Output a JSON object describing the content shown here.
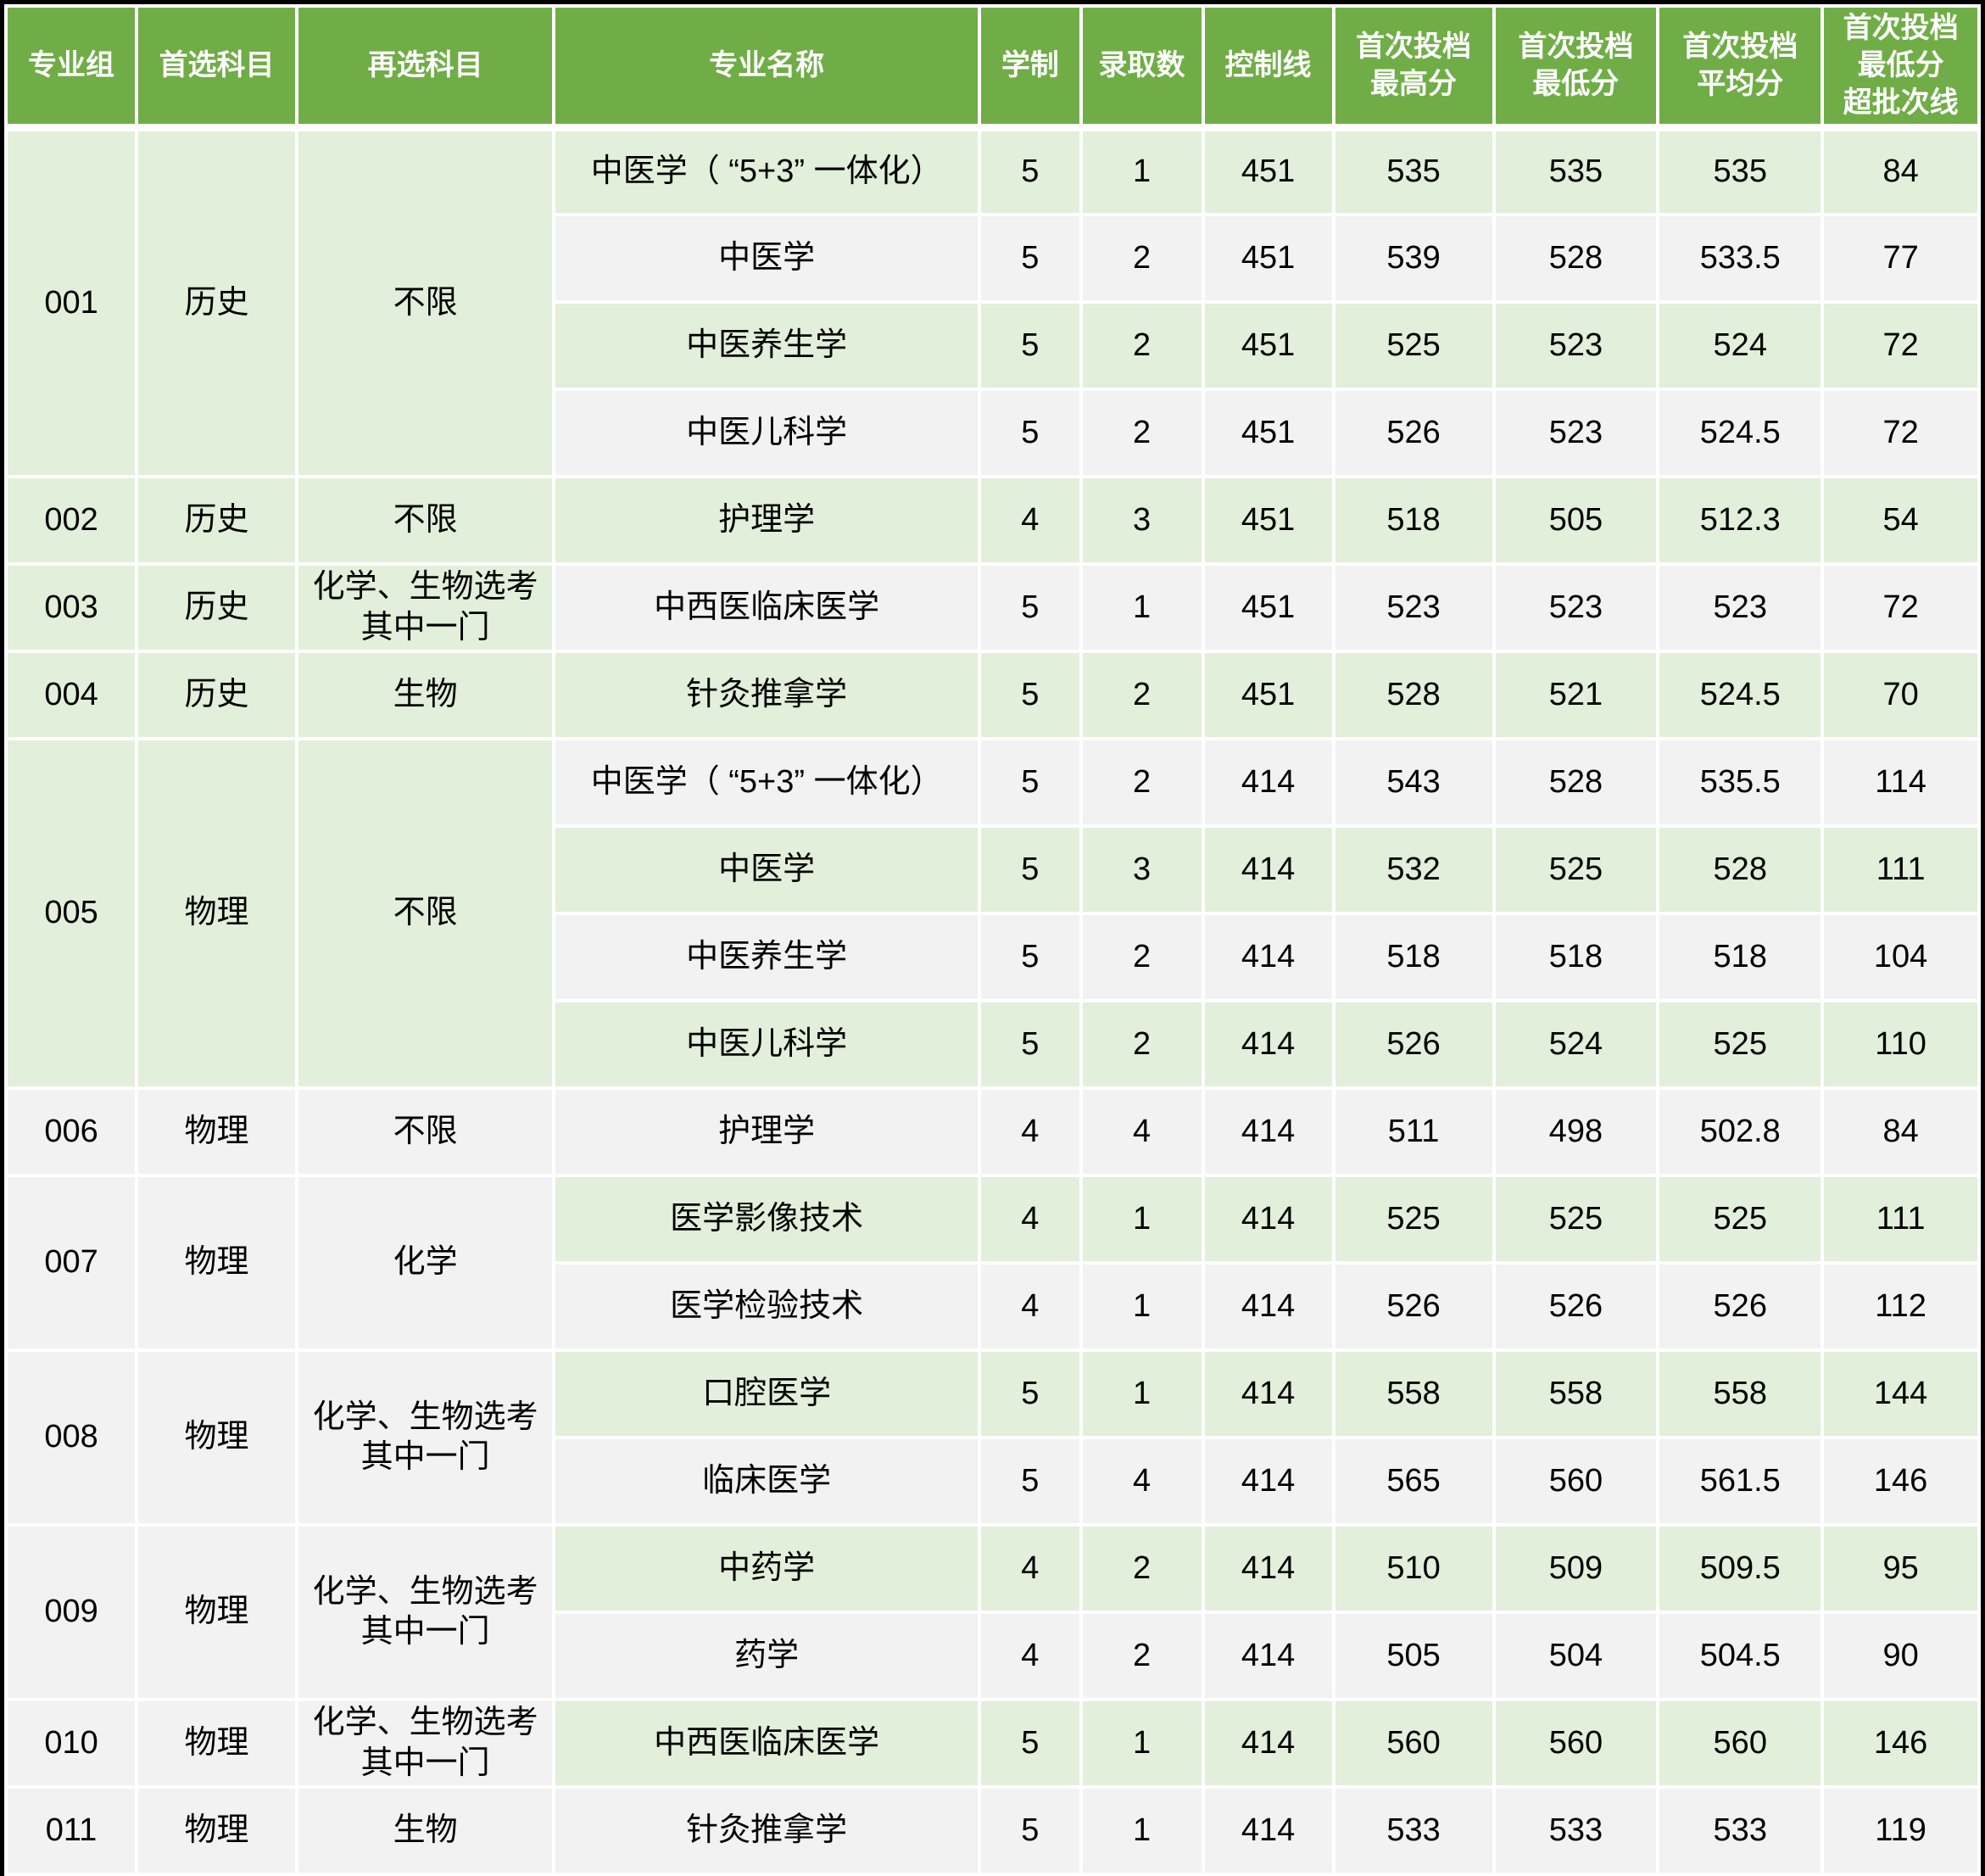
{
  "colors": {
    "header_bg": "#70AD47",
    "header_text": "#FFFFFF",
    "row_green": "#E2EFDA",
    "row_gray": "#F2F2F2",
    "body_text": "#000000"
  },
  "table": {
    "header": [
      "专业组",
      "首选科目",
      "再选科目",
      "专业名称",
      "学制",
      "录取数",
      "控制线",
      "首次投档\n最高分",
      "首次投档\n最低分",
      "首次投档\n平均分",
      "首次投档\n最低分\n超批次线"
    ],
    "groups": [
      {
        "id": "001",
        "first_subject": "历史",
        "second_subject": "不限",
        "left_band": "green",
        "majors": [
          {
            "name": "中医学（ “5+3” 一体化）",
            "years": "5",
            "count": "1",
            "control": "451",
            "max": "535",
            "min": "535",
            "avg": "535",
            "above": "84",
            "band": "green"
          },
          {
            "name": "中医学",
            "years": "5",
            "count": "2",
            "control": "451",
            "max": "539",
            "min": "528",
            "avg": "533.5",
            "above": "77",
            "band": "gray"
          },
          {
            "name": "中医养生学",
            "years": "5",
            "count": "2",
            "control": "451",
            "max": "525",
            "min": "523",
            "avg": "524",
            "above": "72",
            "band": "green"
          },
          {
            "name": "中医儿科学",
            "years": "5",
            "count": "2",
            "control": "451",
            "max": "526",
            "min": "523",
            "avg": "524.5",
            "above": "72",
            "band": "gray"
          }
        ]
      },
      {
        "id": "002",
        "first_subject": "历史",
        "second_subject": "不限",
        "left_band": "green",
        "majors": [
          {
            "name": "护理学",
            "years": "4",
            "count": "3",
            "control": "451",
            "max": "518",
            "min": "505",
            "avg": "512.3",
            "above": "54",
            "band": "green"
          }
        ]
      },
      {
        "id": "003",
        "first_subject": "历史",
        "second_subject": "化学、生物选考\n其中一门",
        "left_band": "green",
        "majors": [
          {
            "name": "中西医临床医学",
            "years": "5",
            "count": "1",
            "control": "451",
            "max": "523",
            "min": "523",
            "avg": "523",
            "above": "72",
            "band": "gray"
          }
        ]
      },
      {
        "id": "004",
        "first_subject": "历史",
        "second_subject": "生物",
        "left_band": "green",
        "majors": [
          {
            "name": "针灸推拿学",
            "years": "5",
            "count": "2",
            "control": "451",
            "max": "528",
            "min": "521",
            "avg": "524.5",
            "above": "70",
            "band": "green"
          }
        ]
      },
      {
        "id": "005",
        "first_subject": "物理",
        "second_subject": "不限",
        "left_band": "green",
        "majors": [
          {
            "name": "中医学（ “5+3” 一体化）",
            "years": "5",
            "count": "2",
            "control": "414",
            "max": "543",
            "min": "528",
            "avg": "535.5",
            "above": "114",
            "band": "gray"
          },
          {
            "name": "中医学",
            "years": "5",
            "count": "3",
            "control": "414",
            "max": "532",
            "min": "525",
            "avg": "528",
            "above": "111",
            "band": "green"
          },
          {
            "name": "中医养生学",
            "years": "5",
            "count": "2",
            "control": "414",
            "max": "518",
            "min": "518",
            "avg": "518",
            "above": "104",
            "band": "gray"
          },
          {
            "name": "中医儿科学",
            "years": "5",
            "count": "2",
            "control": "414",
            "max": "526",
            "min": "524",
            "avg": "525",
            "above": "110",
            "band": "green"
          }
        ]
      },
      {
        "id": "006",
        "first_subject": "物理",
        "second_subject": "不限",
        "left_band": "gray",
        "majors": [
          {
            "name": "护理学",
            "years": "4",
            "count": "4",
            "control": "414",
            "max": "511",
            "min": "498",
            "avg": "502.8",
            "above": "84",
            "band": "gray"
          }
        ]
      },
      {
        "id": "007",
        "first_subject": "物理",
        "second_subject": "化学",
        "left_band": "gray",
        "majors": [
          {
            "name": "医学影像技术",
            "years": "4",
            "count": "1",
            "control": "414",
            "max": "525",
            "min": "525",
            "avg": "525",
            "above": "111",
            "band": "green"
          },
          {
            "name": "医学检验技术",
            "years": "4",
            "count": "1",
            "control": "414",
            "max": "526",
            "min": "526",
            "avg": "526",
            "above": "112",
            "band": "gray"
          }
        ]
      },
      {
        "id": "008",
        "first_subject": "物理",
        "second_subject": "化学、生物选考\n其中一门",
        "left_band": "gray",
        "majors": [
          {
            "name": "口腔医学",
            "years": "5",
            "count": "1",
            "control": "414",
            "max": "558",
            "min": "558",
            "avg": "558",
            "above": "144",
            "band": "green"
          },
          {
            "name": "临床医学",
            "years": "5",
            "count": "4",
            "control": "414",
            "max": "565",
            "min": "560",
            "avg": "561.5",
            "above": "146",
            "band": "gray"
          }
        ]
      },
      {
        "id": "009",
        "first_subject": "物理",
        "second_subject": "化学、生物选考\n其中一门",
        "left_band": "gray",
        "majors": [
          {
            "name": "中药学",
            "years": "4",
            "count": "2",
            "control": "414",
            "max": "510",
            "min": "509",
            "avg": "509.5",
            "above": "95",
            "band": "green"
          },
          {
            "name": "药学",
            "years": "4",
            "count": "2",
            "control": "414",
            "max": "505",
            "min": "504",
            "avg": "504.5",
            "above": "90",
            "band": "gray"
          }
        ]
      },
      {
        "id": "010",
        "first_subject": "物理",
        "second_subject": "化学、生物选考\n其中一门",
        "left_band": "gray",
        "majors": [
          {
            "name": "中西医临床医学",
            "years": "5",
            "count": "1",
            "control": "414",
            "max": "560",
            "min": "560",
            "avg": "560",
            "above": "146",
            "band": "green"
          }
        ]
      },
      {
        "id": "011",
        "first_subject": "物理",
        "second_subject": "生物",
        "left_band": "gray",
        "majors": [
          {
            "name": "针灸推拿学",
            "years": "5",
            "count": "1",
            "control": "414",
            "max": "533",
            "min": "533",
            "avg": "533",
            "above": "119",
            "band": "gray"
          }
        ]
      }
    ]
  }
}
